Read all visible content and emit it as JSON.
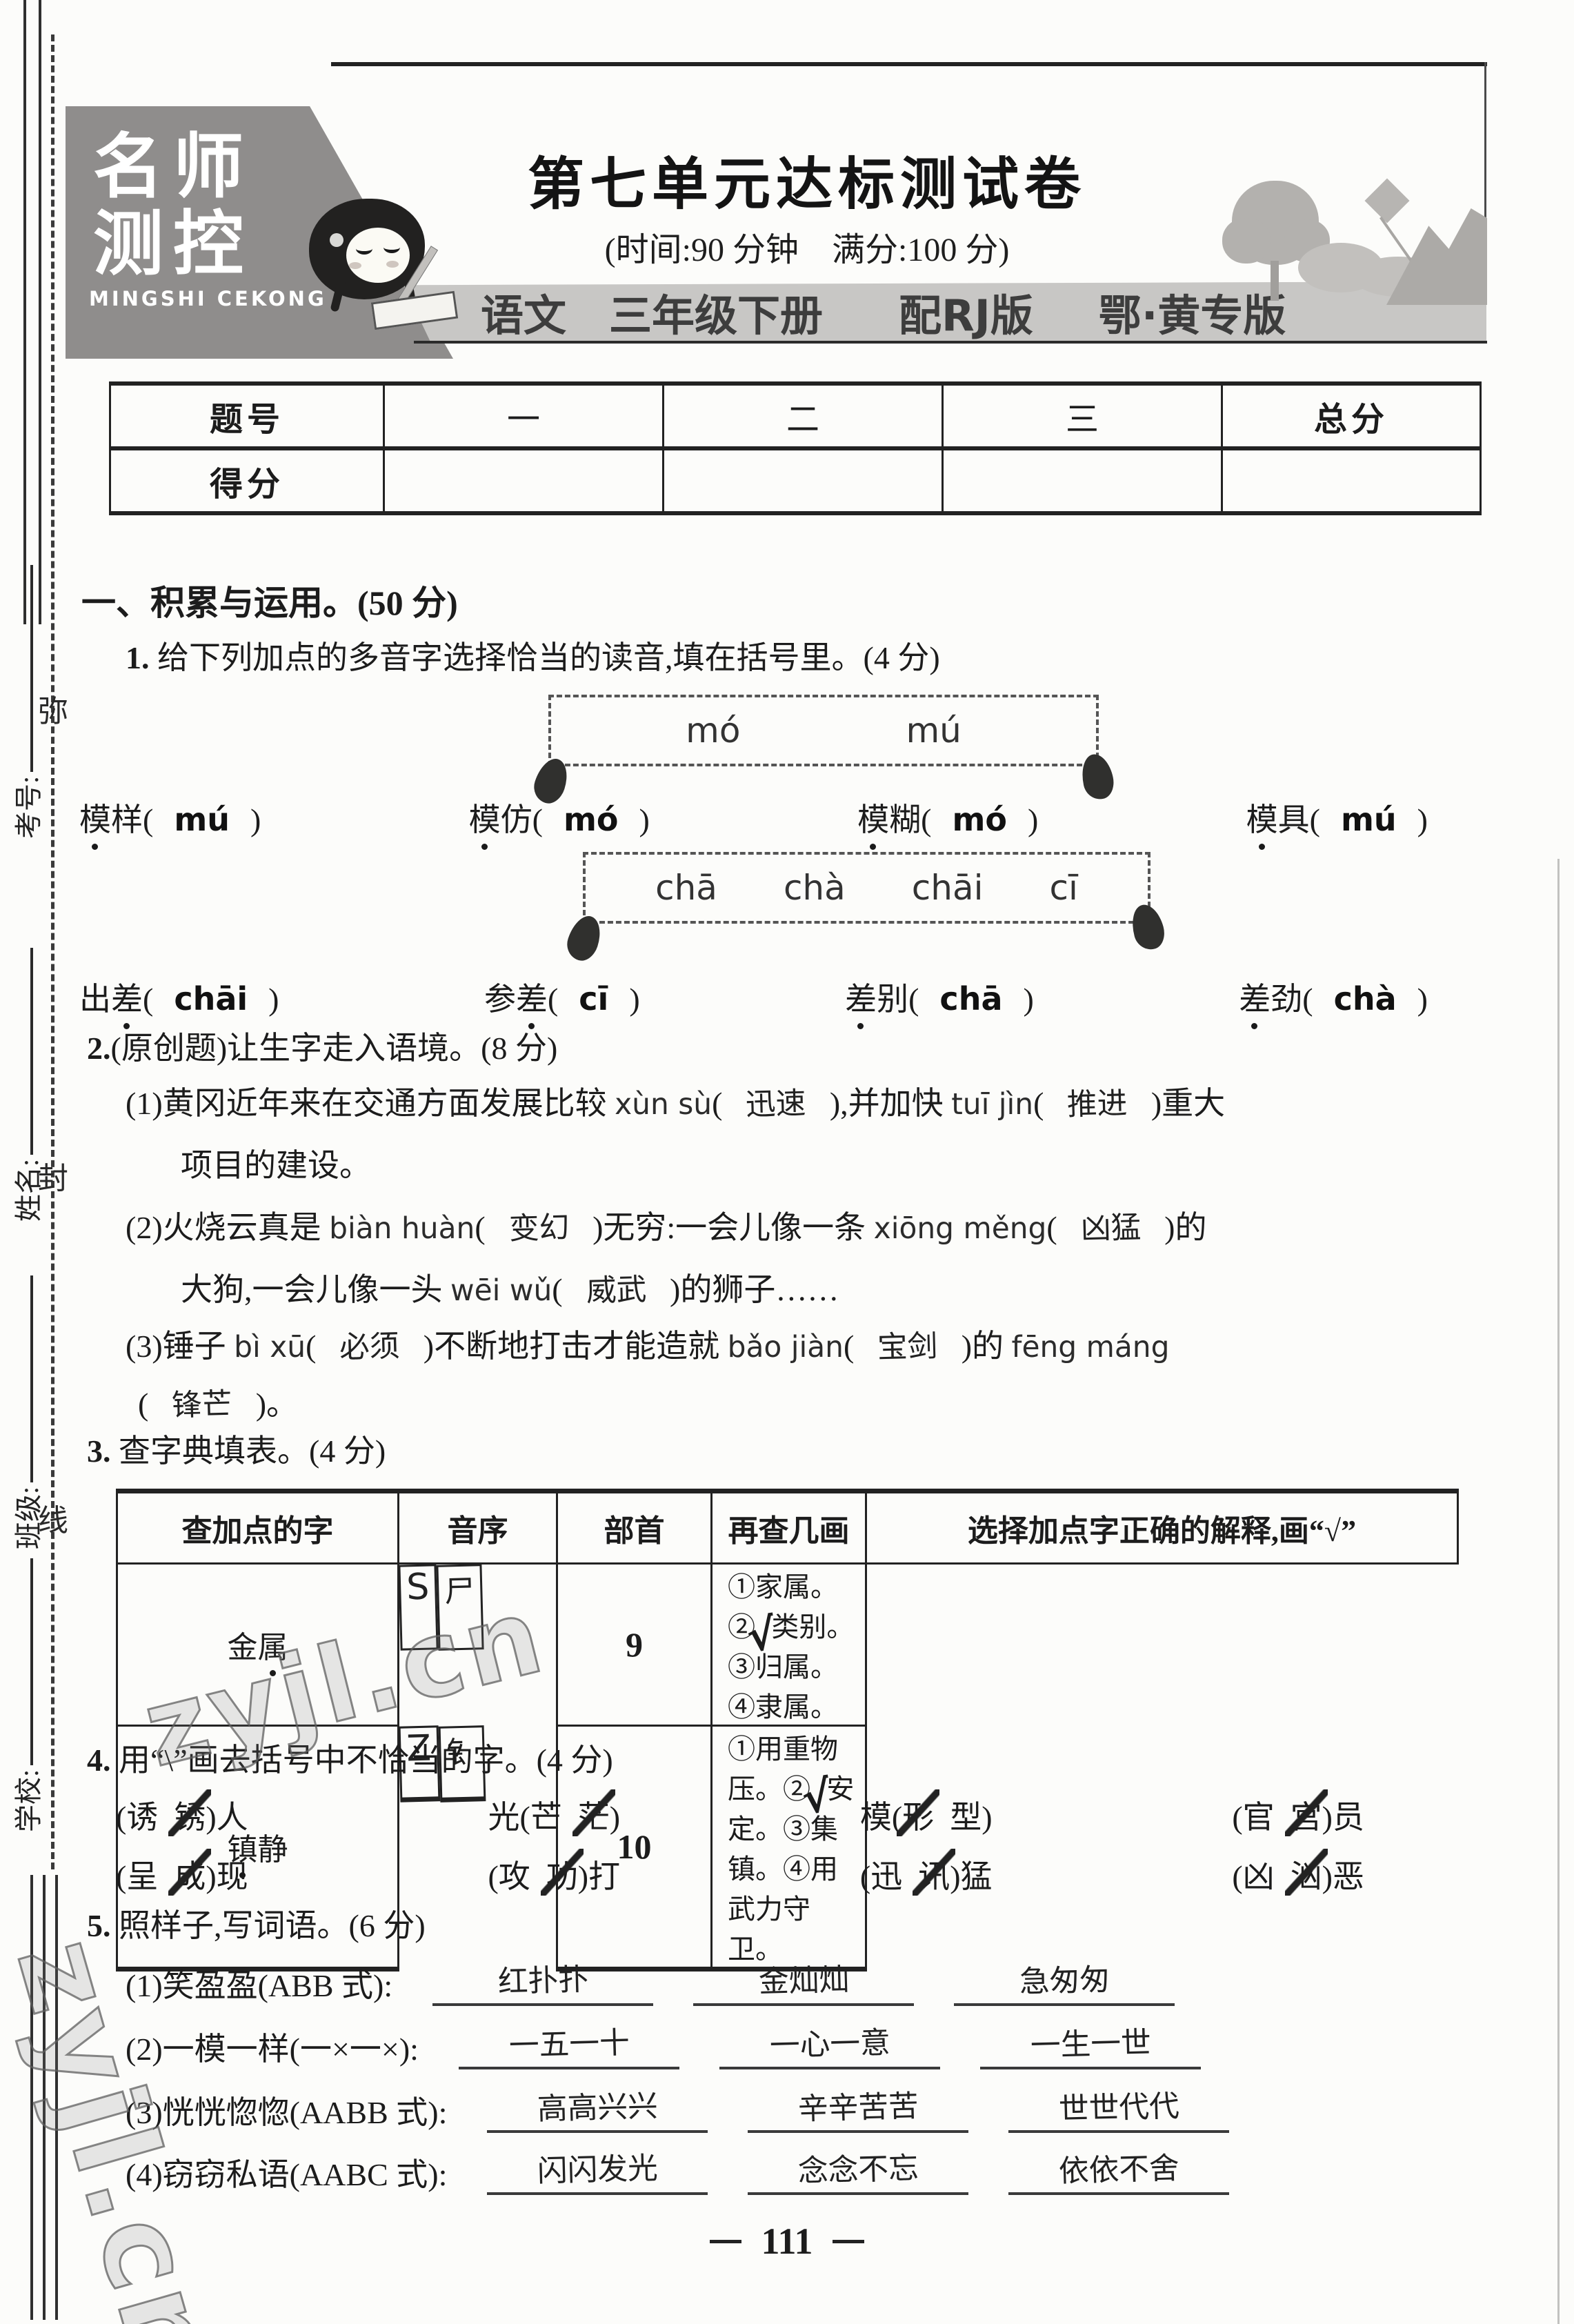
{
  "page": {
    "number": "111",
    "watermark": "zyjl.cn"
  },
  "margin": {
    "fields": [
      {
        "label": "考号:"
      },
      {
        "label": "姓名:"
      },
      {
        "label": "班级:"
      },
      {
        "label": "学校:"
      }
    ],
    "seal_chars": [
      "弥",
      "封",
      "线"
    ]
  },
  "header": {
    "logo": {
      "line1": "名师",
      "line2": "测控",
      "subtitle": "MINGSHI CEKONG"
    },
    "title": "第七单元达标测试卷",
    "meta": "(时间:90 分钟　满分:100 分)",
    "band": {
      "subject": "语文",
      "grade": "三年级下册",
      "edition": "配RJ版",
      "region": "鄂·黄专版"
    }
  },
  "score_table": {
    "header_row": [
      "题号",
      "一",
      "二",
      "三",
      "总分"
    ],
    "score_label": "得分"
  },
  "section1": {
    "title": "一、积累与运用。(50 分)"
  },
  "q1": {
    "prompt": [
      {
        "t": "1.",
        "b": 1
      },
      {
        "t": " 给下列加点的多音字选择恰当的读音,填在括号里。(4 分)"
      }
    ],
    "box1": [
      "mó",
      "mú"
    ],
    "box2": [
      "chā",
      "chà",
      "chāi",
      "cī"
    ],
    "row1": [
      [
        {
          "t": "模",
          "dot": 1
        },
        {
          "t": "样("
        },
        {
          "t": "mú",
          "ap": 1
        },
        {
          "t": ")"
        }
      ],
      [
        {
          "t": "模",
          "dot": 1
        },
        {
          "t": "仿("
        },
        {
          "t": "mó",
          "ap": 1
        },
        {
          "t": ")"
        }
      ],
      [
        {
          "t": "模",
          "dot": 1
        },
        {
          "t": "糊("
        },
        {
          "t": "mó",
          "ap": 1
        },
        {
          "t": ")"
        }
      ],
      [
        {
          "t": "模",
          "dot": 1
        },
        {
          "t": "具("
        },
        {
          "t": "mú",
          "ap": 1
        },
        {
          "t": ")"
        }
      ]
    ],
    "row2": [
      [
        {
          "t": "出"
        },
        {
          "t": "差",
          "dot": 1
        },
        {
          "t": "("
        },
        {
          "t": "chāi",
          "ap": 1
        },
        {
          "t": ")"
        }
      ],
      [
        {
          "t": "参"
        },
        {
          "t": "差",
          "dot": 1
        },
        {
          "t": "("
        },
        {
          "t": "cī",
          "ap": 1
        },
        {
          "t": ")"
        }
      ],
      [
        {
          "t": "差",
          "dot": 1
        },
        {
          "t": "别("
        },
        {
          "t": "chā",
          "ap": 1
        },
        {
          "t": ")"
        }
      ],
      [
        {
          "t": "差",
          "dot": 1
        },
        {
          "t": "劲("
        },
        {
          "t": "chà",
          "ap": 1
        },
        {
          "t": ")"
        }
      ]
    ]
  },
  "q2": {
    "prompt": [
      {
        "t": "2.",
        "b": 1
      },
      {
        "t": "(原创题)",
        "kai": 1
      },
      {
        "t": "让生字走入语境。(8 分)"
      }
    ],
    "l1a": [
      {
        "t": "(1)黄冈近年来在交通方面发展比较 "
      },
      {
        "t": "xùn sù",
        "p": 1
      },
      {
        "t": "("
      },
      {
        "t": "迅速",
        "hw": 1
      },
      {
        "t": "),并加快 "
      },
      {
        "t": "tuī jìn",
        "p": 1
      },
      {
        "t": "("
      },
      {
        "t": "推进",
        "hw": 1
      },
      {
        "t": ")重大"
      }
    ],
    "l1b": [
      {
        "t": "项目的建设。"
      }
    ],
    "l2a": [
      {
        "t": "(2)火烧云真是 "
      },
      {
        "t": "biàn huàn",
        "p": 1
      },
      {
        "t": "("
      },
      {
        "t": "变幻",
        "hw": 1
      },
      {
        "t": ")无穷:一会儿像一条 "
      },
      {
        "t": "xiōng měng",
        "p": 1
      },
      {
        "t": "("
      },
      {
        "t": "凶猛",
        "hw": 1
      },
      {
        "t": ")的"
      }
    ],
    "l2b": [
      {
        "t": "大狗,一会儿像一头 "
      },
      {
        "t": "wēi wǔ",
        "p": 1
      },
      {
        "t": "("
      },
      {
        "t": "威武",
        "hw": 1
      },
      {
        "t": ")的狮子……"
      }
    ],
    "l3a": [
      {
        "t": "(3)锤子 "
      },
      {
        "t": "bì xū",
        "p": 1
      },
      {
        "t": "("
      },
      {
        "t": "必须",
        "hw": 1
      },
      {
        "t": ")不断地打击才能造就 "
      },
      {
        "t": "bǎo jiàn",
        "p": 1
      },
      {
        "t": "("
      },
      {
        "t": "宝剑",
        "hw": 1
      },
      {
        "t": ")的 "
      },
      {
        "t": "fēng máng",
        "p": 1
      }
    ],
    "l3b": [
      {
        "t": "("
      },
      {
        "t": "锋芒",
        "hw": 1
      },
      {
        "t": ")。"
      }
    ]
  },
  "q3": {
    "prompt": [
      {
        "t": "3.",
        "b": 1
      },
      {
        "t": " 查字典填表。(4 分)"
      }
    ],
    "table": {
      "headers": [
        "查加点的字",
        "音序",
        "部首",
        "再查几画",
        "选择加点字正确的解释,画“√”"
      ],
      "rows": [
        {
          "word": [
            {
              "t": "金"
            },
            {
              "t": "属",
              "dot": 1
            }
          ],
          "initial": "S",
          "radical": "尸",
          "strokes": "9",
          "explain": [
            {
              "t": "①家属。②"
            },
            {
              "t": "√",
              "check": 1
            },
            {
              "t": "类别。③归属。④隶属。"
            }
          ]
        },
        {
          "word": [
            {
              "t": "镇",
              "dot": 1
            },
            {
              "t": "静"
            }
          ],
          "initial": "Z",
          "radical": "钅",
          "strokes": "10",
          "explain": [
            {
              "t": "①用重物压。②"
            },
            {
              "t": "√",
              "check": 1
            },
            {
              "t": "安定。③集镇。④用武力守卫。"
            }
          ]
        }
      ]
    }
  },
  "q4": {
    "prompt": [
      {
        "t": "4.",
        "b": 1
      },
      {
        "t": " 用“\\”画去括号中不恰当的字。(4 分)"
      }
    ],
    "row1": [
      [
        {
          "t": "(诱  "
        },
        {
          "t": "锈",
          "strike": 1
        },
        {
          "t": ")人"
        }
      ],
      [
        {
          "t": "光(芒  "
        },
        {
          "t": "茫",
          "strike": 1
        },
        {
          "t": ")"
        }
      ],
      [
        {
          "t": "模("
        },
        {
          "t": "形",
          "strike": 1
        },
        {
          "t": "  型)"
        }
      ],
      [
        {
          "t": "(官  "
        },
        {
          "t": "宫",
          "strike": 1
        },
        {
          "t": ")员"
        }
      ]
    ],
    "row2": [
      [
        {
          "t": "(呈  "
        },
        {
          "t": "成",
          "strike": 1
        },
        {
          "t": ")现"
        }
      ],
      [
        {
          "t": "(攻  "
        },
        {
          "t": "功",
          "strike": 1
        },
        {
          "t": ")打"
        }
      ],
      [
        {
          "t": "(迅  "
        },
        {
          "t": "讯",
          "strike": 1
        },
        {
          "t": ")猛"
        }
      ],
      [
        {
          "t": "(凶  "
        },
        {
          "t": "汹",
          "strike": 1
        },
        {
          "t": ")恶"
        }
      ]
    ]
  },
  "q5": {
    "prompt": [
      {
        "t": "5.",
        "b": 1
      },
      {
        "t": " 照样子,写词语。(6 分)"
      }
    ],
    "items": [
      {
        "label": "(1)笑盈盈(ABB 式):",
        "answers": [
          "红扑扑",
          "金灿灿",
          "急匆匆"
        ]
      },
      {
        "label": "(2)一模一样(一×一×):",
        "answers": [
          "一五一十",
          "一心一意",
          "一生一世"
        ]
      },
      {
        "label": "(3)恍恍惚惚(AABB 式):",
        "answers": [
          "高高兴兴",
          "辛辛苦苦",
          "世世代代"
        ]
      },
      {
        "label": "(4)窃窃私语(AABC 式):",
        "answers": [
          "闪闪发光",
          "念念不忘",
          "依依不舍"
        ]
      }
    ]
  }
}
